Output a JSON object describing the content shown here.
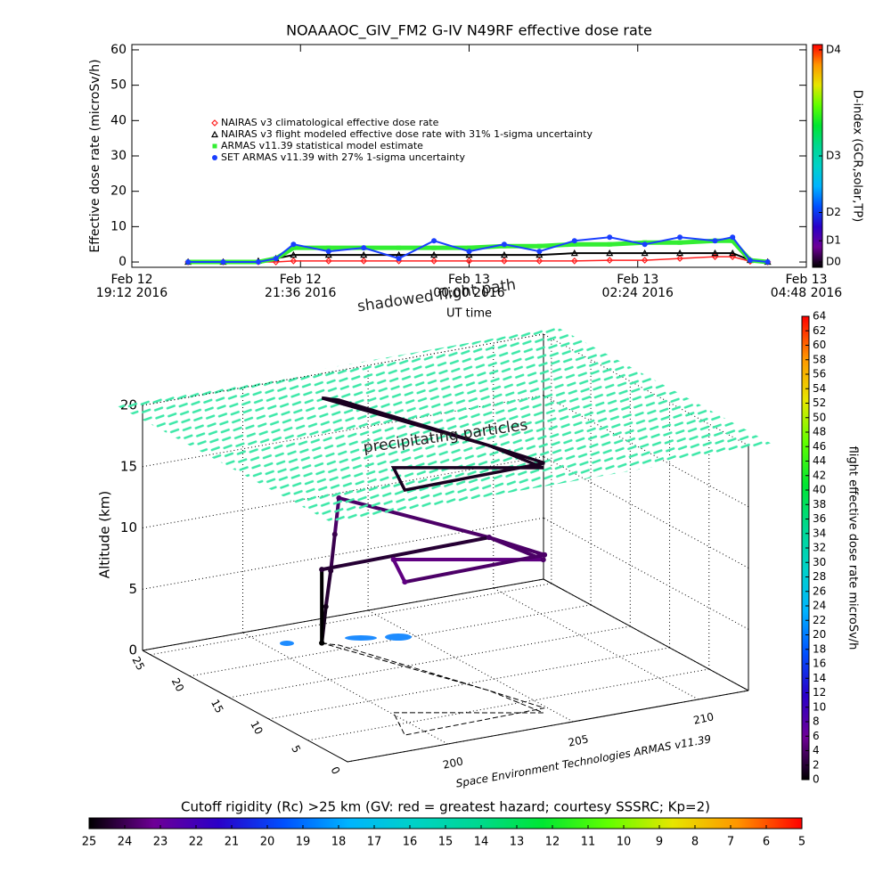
{
  "chart_data": [
    {
      "type": "line",
      "title": "NOAAAOC_GIV_FM2 G-IV   N49RF  effective dose rate",
      "y_label": "Effective dose rate (microSv/h)",
      "x_label": "UT time",
      "x": [
        "2016-02-12 20:00",
        "2016-02-12 20:30",
        "2016-02-12 21:00",
        "2016-02-12 21:15",
        "2016-02-12 21:30",
        "2016-02-12 22:00",
        "2016-02-12 22:30",
        "2016-02-12 23:00",
        "2016-02-12 23:30",
        "2016-02-13 00:00",
        "2016-02-13 00:30",
        "2016-02-13 01:00",
        "2016-02-13 01:30",
        "2016-02-13 02:00",
        "2016-02-13 02:30",
        "2016-02-13 03:00",
        "2016-02-13 03:30",
        "2016-02-13 03:45",
        "2016-02-13 04:00",
        "2016-02-13 04:15"
      ],
      "xlim": [
        "2016-02-12 19:12",
        "2016-02-13 04:48"
      ],
      "xticks": [
        {
          "value": "2016-02-12 19:12",
          "label": "Feb 12\n19:12 2016"
        },
        {
          "value": "2016-02-12 21:36",
          "label": "Feb 12\n21:36 2016"
        },
        {
          "value": "2016-02-13 00:00",
          "label": "Feb 13\n00:00 2016"
        },
        {
          "value": "2016-02-13 02:24",
          "label": "Feb 13\n02:24 2016"
        },
        {
          "value": "2016-02-13 04:48",
          "label": "Feb 13\n04:48 2016"
        }
      ],
      "ylim": [
        -1.5,
        61.5
      ],
      "yticks": [
        0,
        10,
        20,
        30,
        40,
        50,
        60
      ],
      "legend": "upper left",
      "series": [
        {
          "name": "NAIRAS v3 climatological effective dose rate",
          "color": "#ff2020",
          "marker": "diamond",
          "width": 1.5,
          "values": [
            0,
            0,
            0,
            0,
            0.3,
            0.3,
            0.3,
            0.3,
            0.3,
            0.3,
            0.3,
            0.3,
            0.3,
            0.5,
            0.5,
            1,
            1.5,
            1.5,
            0.2,
            0
          ]
        },
        {
          "name": "NAIRAS v3 flight modeled effective dose rate with 31% 1-sigma uncertainty",
          "color": "#000000",
          "marker": "triangle",
          "width": 2,
          "values": [
            0,
            0,
            0.3,
            1,
            2,
            2,
            2,
            2,
            2,
            2,
            2,
            2,
            2.5,
            2.5,
            2.5,
            2.5,
            2.5,
            2.5,
            0.5,
            0
          ]
        },
        {
          "name": "ARMAS v11.39 statistical model estimate",
          "color": "#33ee33",
          "marker": "square",
          "width": 5,
          "values": [
            0,
            0,
            0,
            1,
            4,
            4,
            4,
            4,
            4,
            4,
            4.5,
            4.5,
            5,
            5,
            5.5,
            5.5,
            6,
            6,
            0.5,
            0
          ]
        },
        {
          "name": "SET ARMAS v11.39 with 27% 1-sigma uncertainty",
          "color": "#1a3fff",
          "marker": "circle",
          "width": 2,
          "values": [
            0,
            0,
            0,
            1,
            5,
            3,
            4,
            1,
            6,
            3,
            5,
            3,
            6,
            7,
            5,
            7,
            6,
            7,
            0.5,
            0
          ]
        }
      ]
    },
    {
      "type": "colorbar",
      "label": "D-index (GCR,solar,TP)",
      "orientation": "vertical",
      "lim": [
        -1.5,
        61.5
      ],
      "ticks": [
        {
          "value": 0,
          "label": "D0"
        },
        {
          "value": 6,
          "label": "D1"
        },
        {
          "value": 14,
          "label": "D2"
        },
        {
          "value": 30,
          "label": "D3"
        },
        {
          "value": 60,
          "label": "D4"
        }
      ],
      "colormap": [
        "#000000",
        "#6e0096",
        "#2a00c8",
        "#0050ff",
        "#00b4ff",
        "#00d2c8",
        "#00d890",
        "#00e632",
        "#60ff00",
        "#e6e600",
        "#ff9600",
        "#ff0000"
      ]
    },
    {
      "type": "line3d",
      "annotations": [
        "shadowed flight path",
        "precipitating particles"
      ],
      "z_label": "Altitude (km)",
      "credit": "Space Environment Technologies ARMAS v11.39",
      "xlim": [
        196,
        212
      ],
      "xticks": [
        200,
        205,
        210
      ],
      "ylim": [
        0,
        26
      ],
      "yticks": [
        0,
        5,
        10,
        15,
        20,
        25
      ],
      "zlim": [
        0,
        20
      ],
      "zticks": [
        0,
        5,
        10,
        15,
        20
      ],
      "x": [
        201.8,
        201.9,
        202.0,
        202.1,
        202.2,
        204.2,
        204.6,
        200.1,
        199.2,
        204.9,
        204.2,
        201.8,
        201.8
      ],
      "y": [
        21.7,
        21.5,
        21.2,
        21.0,
        20.8,
        8.1,
        2.5,
        7.2,
        2.9,
        3.3,
        8.1,
        21.7,
        21.7
      ],
      "z": [
        0,
        3,
        6,
        9,
        12,
        12.5,
        12.5,
        12.5,
        12.5,
        12.5,
        12.5,
        6,
        0
      ],
      "values": [
        0,
        1,
        2,
        3,
        4,
        4,
        4,
        5,
        5,
        4,
        4,
        2,
        0
      ]
    },
    {
      "type": "colorbar",
      "label": "flight effective dose rate microSv/h",
      "orientation": "vertical",
      "lim": [
        0,
        64
      ],
      "ticks": [
        0,
        2,
        4,
        6,
        8,
        10,
        12,
        14,
        16,
        18,
        20,
        22,
        24,
        26,
        28,
        30,
        32,
        34,
        36,
        38,
        40,
        42,
        44,
        46,
        48,
        50,
        52,
        54,
        56,
        58,
        60,
        62,
        64
      ],
      "colormap": [
        "#000000",
        "#6e0096",
        "#2a00c8",
        "#0050ff",
        "#00b4ff",
        "#00d2c8",
        "#00d890",
        "#00e632",
        "#60ff00",
        "#e6e600",
        "#ff9600",
        "#ff0000"
      ]
    },
    {
      "type": "colorbar",
      "label": "Cutoff rigidity (Rc) >25 km (GV: red = greatest hazard; courtesy SSSRC; Kp=2)",
      "orientation": "horizontal",
      "lim": [
        25,
        5
      ],
      "ticks": [
        25,
        24,
        23,
        22,
        21,
        20,
        19,
        18,
        17,
        16,
        15,
        14,
        13,
        12,
        11,
        10,
        9,
        8,
        7,
        6,
        5
      ],
      "colormap": [
        "#000000",
        "#6e0096",
        "#2a00c8",
        "#0050ff",
        "#00b4ff",
        "#00d2c8",
        "#00d890",
        "#00e632",
        "#60ff00",
        "#e6e600",
        "#ff9600",
        "#ff0000"
      ]
    }
  ]
}
